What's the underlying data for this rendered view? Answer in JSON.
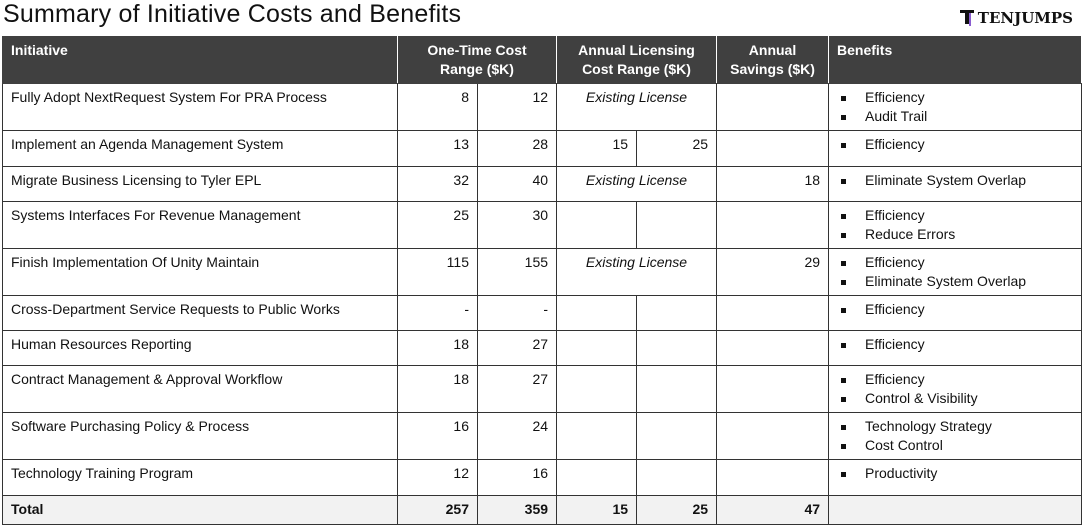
{
  "title": "Summary of Initiative Costs and Benefits",
  "logo": "TENJUMPS",
  "headers": {
    "initiative": "Initiative",
    "one_time": "One-Time Cost Range ($K)",
    "licensing": "Annual Licensing Cost Range ($K)",
    "savings": "Annual Savings ($K)",
    "benefits": "Benefits"
  },
  "rows": [
    {
      "name": "Fully Adopt NextRequest System For PRA Process",
      "ot_low": "8",
      "ot_high": "12",
      "lic": "Existing License",
      "savings": "",
      "benefits": [
        "Efficiency",
        "Audit Trail"
      ]
    },
    {
      "name": "Implement an Agenda Management System",
      "ot_low": "13",
      "ot_high": "28",
      "lic_low": "15",
      "lic_high": "25",
      "savings": "",
      "benefits": [
        "Efficiency"
      ]
    },
    {
      "name": "Migrate Business Licensing to Tyler EPL",
      "ot_low": "32",
      "ot_high": "40",
      "lic": "Existing License",
      "savings": "18",
      "benefits": [
        "Eliminate System Overlap"
      ]
    },
    {
      "name": "Systems Interfaces For Revenue Management",
      "ot_low": "25",
      "ot_high": "30",
      "lic_low": "",
      "lic_high": "",
      "savings": "",
      "benefits": [
        "Efficiency",
        "Reduce Errors"
      ]
    },
    {
      "name": "Finish Implementation Of Unity Maintain",
      "ot_low": "115",
      "ot_high": "155",
      "lic": "Existing License",
      "savings": "29",
      "benefits": [
        "Efficiency",
        "Eliminate System Overlap"
      ]
    },
    {
      "name": "Cross-Department Service Requests to Public Works",
      "ot_low": "-",
      "ot_high": "-",
      "lic_low": "",
      "lic_high": "",
      "savings": "",
      "benefits": [
        "Efficiency"
      ]
    },
    {
      "name": "Human Resources Reporting",
      "ot_low": "18",
      "ot_high": "27",
      "lic_low": "",
      "lic_high": "",
      "savings": "",
      "benefits": [
        "Efficiency"
      ]
    },
    {
      "name": "Contract Management & Approval Workflow",
      "ot_low": "18",
      "ot_high": "27",
      "lic_low": "",
      "lic_high": "",
      "savings": "",
      "benefits": [
        "Efficiency",
        "Control & Visibility"
      ]
    },
    {
      "name": "Software Purchasing Policy & Process",
      "ot_low": "16",
      "ot_high": "24",
      "lic_low": "",
      "lic_high": "",
      "savings": "",
      "benefits": [
        "Technology Strategy",
        "Cost Control"
      ]
    },
    {
      "name": "Technology Training Program",
      "ot_low": "12",
      "ot_high": "16",
      "lic_low": "",
      "lic_high": "",
      "savings": "",
      "benefits": [
        "Productivity"
      ]
    }
  ],
  "total": {
    "label": "Total",
    "ot_low": "257",
    "ot_high": "359",
    "lic_low": "15",
    "lic_high": "25",
    "savings": "47"
  }
}
